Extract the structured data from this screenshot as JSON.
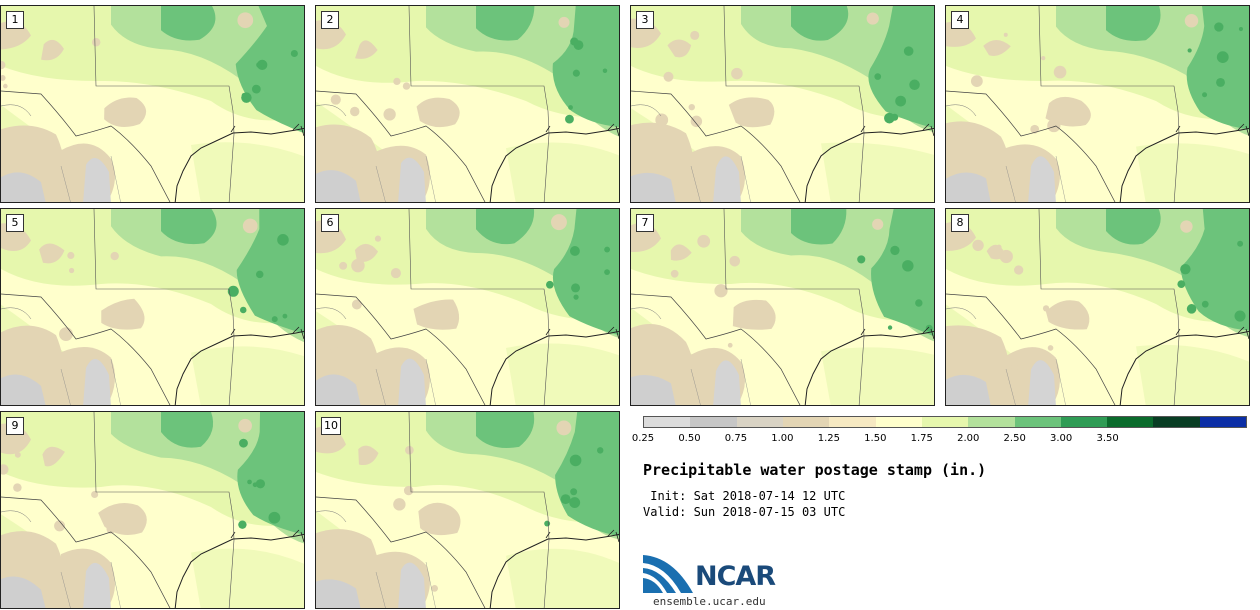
{
  "stamps": [
    {
      "label": "1"
    },
    {
      "label": "2"
    },
    {
      "label": "3"
    },
    {
      "label": "4"
    },
    {
      "label": "5"
    },
    {
      "label": "6"
    },
    {
      "label": "7"
    },
    {
      "label": "8"
    },
    {
      "label": "9"
    },
    {
      "label": "10"
    }
  ],
  "colorbar": {
    "colors": [
      "#dcdcdc",
      "#c6c6c6",
      "#d9d3c4",
      "#e3d5b4",
      "#f6e9c2",
      "#ffffcc",
      "#e6f7ad",
      "#b3e19c",
      "#6cc37b",
      "#2f9c55",
      "#0a6b2c",
      "#083d23",
      "#0b2ea6"
    ],
    "ticks": [
      "0.25",
      "0.50",
      "0.75",
      "1.00",
      "1.25",
      "1.50",
      "1.75",
      "2.00",
      "2.50",
      "3.00",
      "3.50"
    ]
  },
  "title": "Precipitable water postage stamp (in.)",
  "init_text": " Init: Sat 2018-07-14 12 UTC",
  "valid_text": "Valid: Sun 2018-07-15 03 UTC",
  "logo": {
    "text": "NCAR",
    "website": "ensemble.ucar.edu"
  }
}
